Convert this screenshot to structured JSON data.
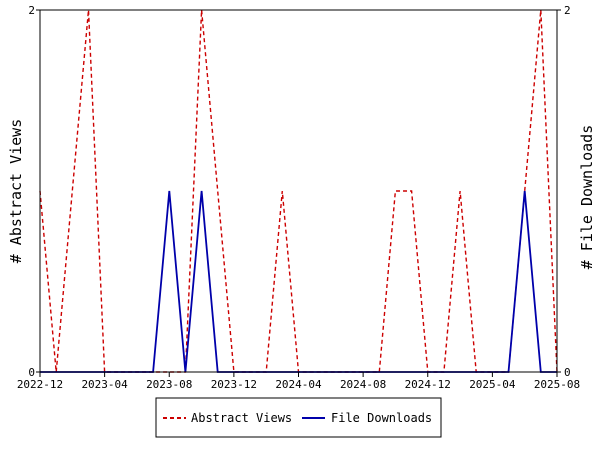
{
  "chart_data": {
    "type": "line",
    "title": "",
    "ylabel_left": "# Abstract Views",
    "ylabel_right": "# File Downloads",
    "x_tick_labels": [
      "2022-12",
      "2023-04",
      "2023-08",
      "2023-12",
      "2024-04",
      "2024-08",
      "2024-12",
      "2025-04",
      "2025-08"
    ],
    "x_range": [
      "2022-12",
      "2025-08"
    ],
    "ylim_left": [
      0,
      2
    ],
    "ylim_right": [
      0,
      2
    ],
    "y_tick_labels_left": [
      "0",
      "2"
    ],
    "y_tick_labels_right": [
      "0",
      "2"
    ],
    "grid": false,
    "legend_position": "bottom",
    "x": [
      "2022-12",
      "2023-01",
      "2023-02",
      "2023-03",
      "2023-04",
      "2023-05",
      "2023-06",
      "2023-07",
      "2023-08",
      "2023-09",
      "2023-10",
      "2023-11",
      "2023-12",
      "2024-01",
      "2024-02",
      "2024-03",
      "2024-04",
      "2024-05",
      "2024-06",
      "2024-07",
      "2024-08",
      "2024-09",
      "2024-10",
      "2024-11",
      "2024-12",
      "2025-01",
      "2025-02",
      "2025-03",
      "2025-04",
      "2025-05",
      "2025-06",
      "2025-07",
      "2025-08",
      "2025-09"
    ],
    "series": [
      {
        "name": "Abstract Views",
        "color": "#cc0000",
        "dash": true,
        "axis": "left",
        "values": [
          1,
          0,
          1,
          2,
          0,
          0,
          0,
          0,
          0,
          0,
          2,
          1,
          0,
          0,
          0,
          1,
          0,
          0,
          0,
          0,
          0,
          0,
          1,
          1,
          0,
          0,
          1,
          0,
          0,
          0,
          1,
          2,
          0,
          0
        ]
      },
      {
        "name": "File Downloads",
        "color": "#0000aa",
        "dash": false,
        "axis": "right",
        "values": [
          0,
          0,
          0,
          0,
          0,
          0,
          0,
          0,
          1,
          0,
          1,
          0,
          0,
          0,
          0,
          0,
          0,
          0,
          0,
          0,
          0,
          0,
          0,
          0,
          0,
          0,
          0,
          0,
          0,
          0,
          1,
          0,
          0,
          0
        ]
      }
    ]
  }
}
